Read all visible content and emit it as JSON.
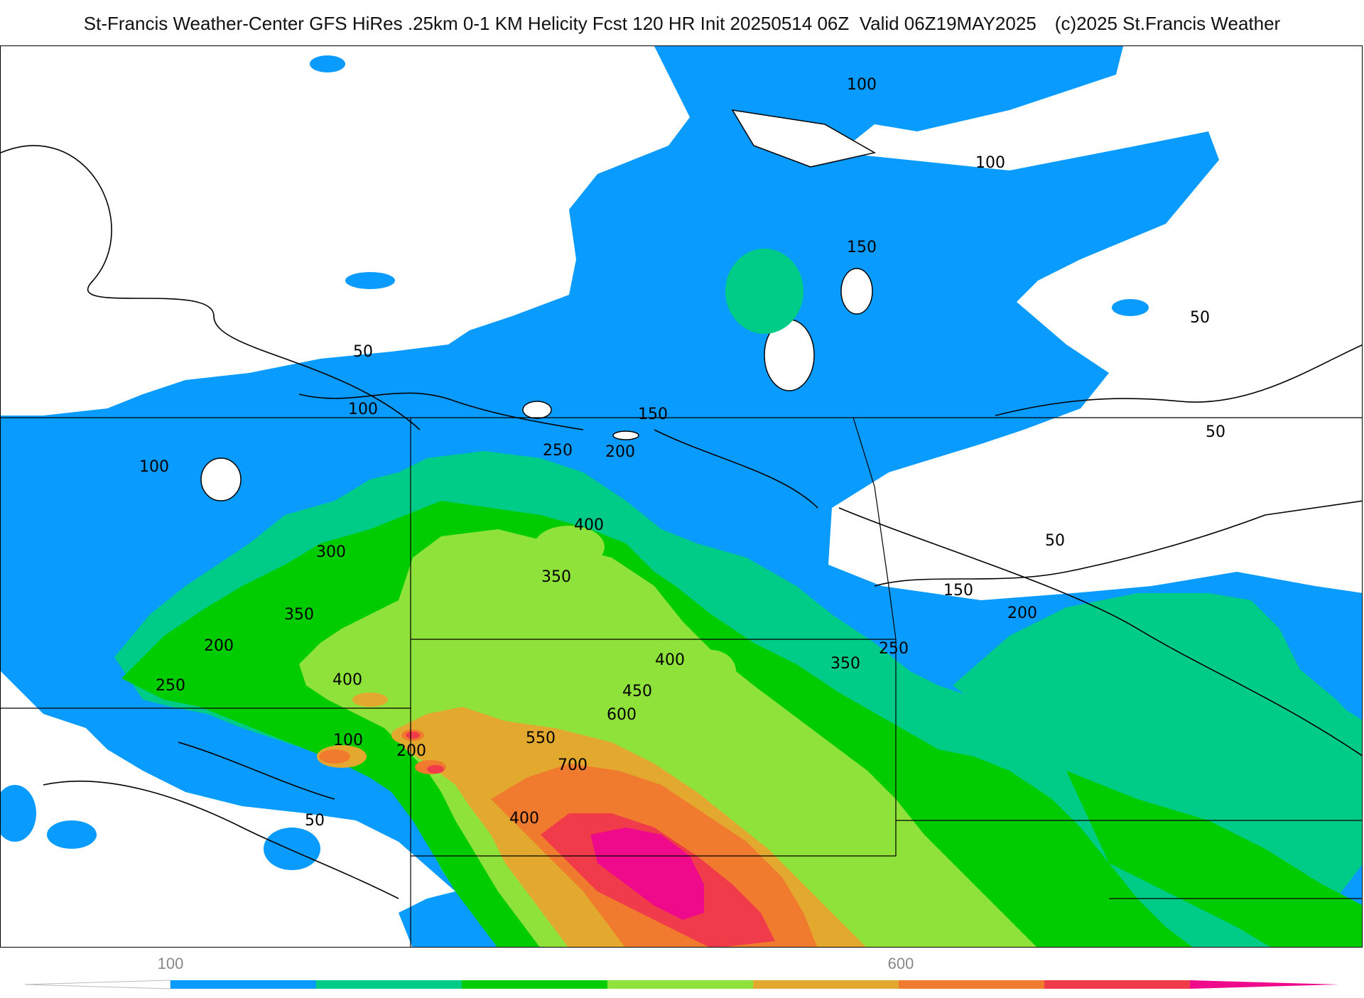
{
  "header": {
    "title": "St-Francis Weather-Center GFS HiRes .25km 0-1 KM Helicity Fcst 120 HR Init 20250514 06Z  Valid 06Z19MAY2025",
    "copyright": "(c)2025 St.Francis Weather"
  },
  "colors": {
    "c100": "#0a9bff",
    "c150": "#00cc88",
    "c200": "#00cc00",
    "c300": "#8fe23a",
    "c400": "#e3a82e",
    "c500": "#f07a2e",
    "c600": "#f03c4a",
    "c700": "#ee0a8a"
  },
  "contour_labels": [
    "100",
    "100",
    "150",
    "50",
    "50",
    "50",
    "100",
    "150",
    "250",
    "200",
    "100",
    "300",
    "400",
    "350",
    "350",
    "200",
    "250",
    "400",
    "100",
    "200",
    "400",
    "450",
    "600",
    "550",
    "700",
    "400",
    "50",
    "150",
    "200",
    "250",
    "350",
    "50"
  ],
  "colorbar": {
    "tick_low": "100",
    "tick_high": "600"
  }
}
